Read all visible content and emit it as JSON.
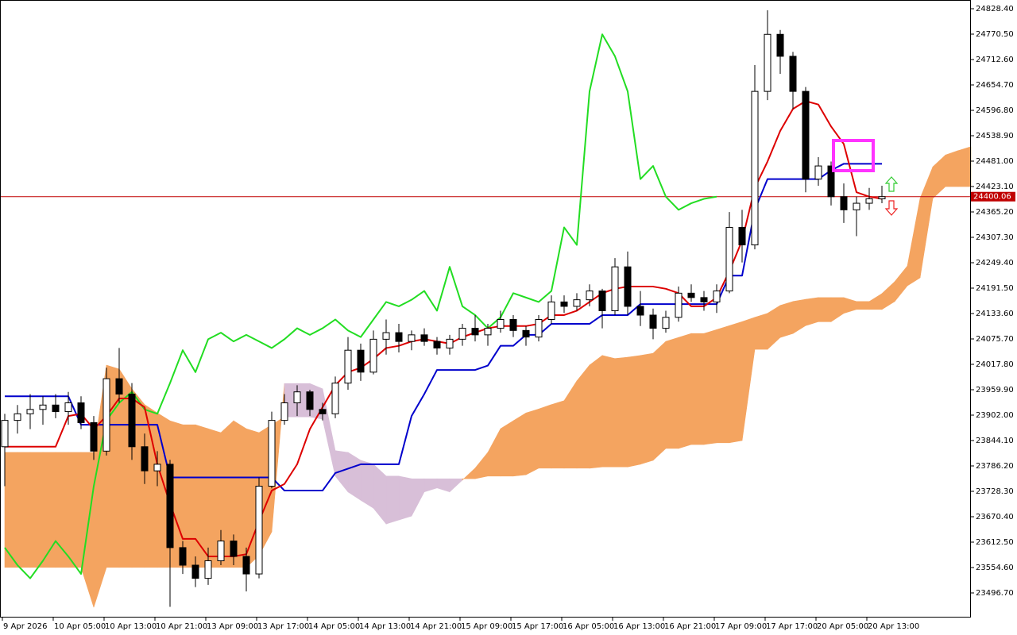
{
  "chart_data": {
    "type": "candlestick",
    "categories": [
      "9 Apr 2026",
      null,
      null,
      null,
      "10 Apr 05:00",
      null,
      null,
      null,
      "10 Apr 13:00",
      null,
      null,
      null,
      "10 Apr 21:00",
      null,
      null,
      null,
      "13 Apr 09:00",
      null,
      null,
      null,
      "13 Apr 17:00",
      null,
      null,
      null,
      "14 Apr 05:00",
      null,
      null,
      null,
      "14 Apr 13:00",
      null,
      null,
      null,
      "14 Apr 21:00",
      null,
      null,
      null,
      "15 Apr 09:00",
      null,
      null,
      null,
      "15 Apr 17:00",
      null,
      null,
      null,
      "16 Apr 05:00",
      null,
      null,
      null,
      "16 Apr 13:00",
      null,
      null,
      null,
      "16 Apr 21:00",
      null,
      null,
      null,
      "17 Apr 09:00",
      null,
      null,
      null,
      "17 Apr 17:00",
      null,
      null,
      null,
      "20 Apr 05:00",
      null,
      null,
      null,
      "20 Apr 13:00",
      null,
      null,
      null,
      null,
      null,
      null,
      null,
      null
    ],
    "open": [
      23830,
      23890,
      23905,
      23915,
      23925,
      23910,
      23930,
      23885,
      23820,
      23985,
      23950,
      23830,
      23775,
      23790,
      23600,
      23560,
      23530,
      23570,
      23615,
      23580,
      23540,
      23740,
      23890,
      23930,
      23955,
      23915,
      23905,
      23975,
      24050,
      24000,
      24075,
      24090,
      24070,
      24085,
      24070,
      24055,
      24075,
      24100,
      24085,
      24100,
      24120,
      24095,
      24080,
      24120,
      24160,
      24150,
      24165,
      24185,
      24140,
      24240,
      24150,
      24130,
      24100,
      24125,
      24180,
      24170,
      24160,
      24185,
      24330,
      24290,
      24640,
      24770,
      24720,
      24640,
      24440,
      24470,
      24400,
      24370,
      24385,
      24395,
      null,
      null,
      null,
      null,
      null,
      null,
      null
    ],
    "high": [
      23905,
      23925,
      23950,
      23945,
      23950,
      23955,
      23945,
      23900,
      24010,
      24055,
      23975,
      23860,
      23820,
      23800,
      23615,
      23580,
      23600,
      23640,
      23630,
      23600,
      23760,
      23910,
      23950,
      23970,
      23960,
      23930,
      23990,
      24080,
      24065,
      24095,
      24120,
      24110,
      24095,
      24100,
      24080,
      24085,
      24110,
      24130,
      24110,
      24140,
      24130,
      24105,
      24130,
      24175,
      24175,
      24180,
      24200,
      24190,
      24260,
      24275,
      24185,
      24145,
      24140,
      24195,
      24200,
      24185,
      24200,
      24365,
      24370,
      24700,
      24825,
      24780,
      24730,
      24650,
      24490,
      24480,
      24430,
      24400,
      24420,
      24425,
      null,
      null,
      null,
      null,
      null,
      null,
      null
    ],
    "low": [
      23740,
      23860,
      23870,
      23880,
      23895,
      23880,
      23870,
      23800,
      23810,
      23930,
      23800,
      23745,
      23740,
      23465,
      23540,
      23510,
      23515,
      23560,
      23560,
      23500,
      23530,
      23735,
      23880,
      23900,
      23900,
      23890,
      23895,
      23960,
      23980,
      23995,
      24040,
      24045,
      24050,
      24060,
      24040,
      24040,
      24060,
      24070,
      24060,
      24090,
      24080,
      24060,
      24070,
      24110,
      24135,
      24140,
      24150,
      24100,
      24130,
      24130,
      24105,
      24075,
      24090,
      24115,
      24160,
      24140,
      24135,
      24180,
      24250,
      24280,
      24620,
      24680,
      24600,
      24410,
      24425,
      24380,
      24340,
      24310,
      24370,
      24385,
      null,
      null,
      null,
      null,
      null,
      null,
      null
    ],
    "close": [
      23890,
      23905,
      23915,
      23925,
      23910,
      23930,
      23885,
      23820,
      23985,
      23950,
      23830,
      23775,
      23790,
      23600,
      23560,
      23530,
      23570,
      23615,
      23580,
      23540,
      23740,
      23890,
      23930,
      23955,
      23915,
      23905,
      23975,
      24050,
      24000,
      24075,
      24090,
      24070,
      24085,
      24070,
      24055,
      24075,
      24100,
      24085,
      24100,
      24120,
      24095,
      24080,
      24120,
      24160,
      24150,
      24165,
      24185,
      24140,
      24240,
      24150,
      24130,
      24100,
      24125,
      24180,
      24170,
      24160,
      24185,
      24330,
      24290,
      24640,
      24770,
      24720,
      24640,
      24440,
      24470,
      24400,
      24370,
      24385,
      24395,
      24400.06,
      null,
      null,
      null,
      null,
      null,
      null,
      null
    ],
    "bull_color": "#ffffff",
    "bear_color": "#000000",
    "candle_outline": "#000000",
    "cloud": {
      "span_a": [
        23817,
        23817,
        23817,
        23817,
        23817,
        23817,
        23817,
        23817,
        24016,
        24007,
        23962,
        23926,
        23907,
        23889,
        23880,
        23880,
        23871,
        23862,
        23889,
        23871,
        23862,
        23880,
        23898,
        23898,
        23898,
        23893,
        23763,
        23727,
        23708,
        23690,
        23654,
        23663,
        23672,
        23727,
        23736,
        23727,
        23754,
        23781,
        23817,
        23871,
        23889,
        23907,
        23916,
        23926,
        23935,
        23980,
        24016,
        24038,
        24031,
        24034,
        24038,
        24043,
        24070,
        24079,
        24088,
        24088,
        24097,
        24106,
        24115,
        24125,
        24134,
        24152,
        24161,
        24166,
        24170,
        24170,
        24170,
        24161,
        24161,
        24179,
        24206,
        24242,
        24396,
        24468,
        24495,
        24505,
        24514
      ],
      "span_b": [
        23555,
        23555,
        23555,
        23555,
        23555,
        23555,
        23555,
        23464,
        23555,
        23555,
        23555,
        23555,
        23555,
        23555,
        23555,
        23555,
        23555,
        23555,
        23555,
        23555,
        23582,
        23636,
        23974,
        23974,
        23974,
        23962,
        23821,
        23817,
        23799,
        23790,
        23763,
        23763,
        23757,
        23757,
        23757,
        23757,
        23757,
        23757,
        23763,
        23763,
        23763,
        23766,
        23781,
        23781,
        23781,
        23781,
        23781,
        23784,
        23784,
        23784,
        23790,
        23799,
        23826,
        23826,
        23835,
        23835,
        23839,
        23839,
        23844,
        24052,
        24052,
        24079,
        24088,
        24106,
        24115,
        24115,
        24134,
        24143,
        24143,
        24143,
        24161,
        24197,
        24215,
        24396,
        24423,
        24423,
        24423
      ],
      "bull_color": "#f4a460",
      "bear_color": "#d8bfd8"
    },
    "lines": [
      {
        "color": "#22dd22",
        "values": [
          23600,
          23560,
          23530,
          23570,
          23615,
          23580,
          23540,
          23740,
          23890,
          23930,
          23955,
          23915,
          23905,
          23975,
          24050,
          24000,
          24075,
          24090,
          24070,
          24085,
          24070,
          24055,
          24075,
          24100,
          24085,
          24100,
          24120,
          24095,
          24080,
          24120,
          24160,
          24150,
          24165,
          24185,
          24140,
          24240,
          24150,
          24130,
          24100,
          24125,
          24180,
          24170,
          24160,
          24185,
          24330,
          24290,
          24640,
          24770,
          24720,
          24640,
          24440,
          24470,
          24400,
          24370,
          24385,
          24395,
          24400.06,
          null,
          null,
          null,
          null,
          null,
          null,
          null,
          null,
          null,
          null,
          null,
          null,
          null,
          null,
          null,
          null,
          null,
          null,
          null,
          null
        ]
      },
      {
        "color": "#0000cc",
        "values": [
          23945,
          23945,
          23945,
          23945,
          23945,
          23945,
          23880,
          23880,
          23880,
          23880,
          23880,
          23880,
          23880,
          23760,
          23760,
          23760,
          23760,
          23760,
          23760,
          23760,
          23760,
          23760,
          23730,
          23730,
          23730,
          23730,
          23770,
          23780,
          23790,
          23790,
          23790,
          23790,
          23900,
          23950,
          24005,
          24005,
          24005,
          24005,
          24015,
          24060,
          24060,
          24085,
          24085,
          24110,
          24110,
          24110,
          24110,
          24130,
          24130,
          24130,
          24155,
          24155,
          24155,
          24155,
          24155,
          24155,
          24155,
          24220,
          24220,
          24370,
          24440,
          24440,
          24440,
          24440,
          24440,
          24460,
          24475,
          24475,
          24475,
          24475,
          null,
          null,
          null,
          null,
          null,
          null,
          null
        ]
      },
      {
        "color": "#dd0000",
        "values": [
          23830,
          23830,
          23830,
          23830,
          23830,
          23900,
          23905,
          23870,
          23900,
          23940,
          23940,
          23920,
          23790,
          23700,
          23620,
          23620,
          23580,
          23580,
          23580,
          23585,
          23660,
          23730,
          23745,
          23790,
          23870,
          23920,
          23970,
          24000,
          24010,
          24030,
          24055,
          24060,
          24070,
          24075,
          24070,
          24065,
          24080,
          24090,
          24100,
          24105,
          24105,
          24105,
          24110,
          24130,
          24130,
          24140,
          24160,
          24180,
          24190,
          24195,
          24195,
          24195,
          24190,
          24180,
          24150,
          24150,
          24170,
          24230,
          24300,
          24420,
          24480,
          24550,
          24600,
          24618,
          24610,
          24560,
          24520,
          24410,
          24400,
          24395,
          null,
          null,
          null,
          null,
          null,
          null,
          null
        ]
      }
    ],
    "price_line": {
      "value": 24400.06,
      "color": "#c00000"
    },
    "ylim": [
      23440.6,
      24848.3
    ],
    "yticks": [
      {
        "value": 24828.4,
        "label": "24828.40"
      },
      {
        "value": 24770.5,
        "label": "24770.50"
      },
      {
        "value": 24712.6,
        "label": "24712.60"
      },
      {
        "value": 24654.7,
        "label": "24654.70"
      },
      {
        "value": 24596.8,
        "label": "24596.80"
      },
      {
        "value": 24538.9,
        "label": "24538.90"
      },
      {
        "value": 24481,
        "label": "24481.00"
      },
      {
        "value": 24423.1,
        "label": "24423.10"
      },
      {
        "value": 24365.2,
        "label": "24365.20"
      },
      {
        "value": 24307.3,
        "label": "24307.30"
      },
      {
        "value": 24249.4,
        "label": "24249.40"
      },
      {
        "value": 24191.5,
        "label": "24191.50"
      },
      {
        "value": 24133.6,
        "label": "24133.60"
      },
      {
        "value": 24075.7,
        "label": "24075.70"
      },
      {
        "value": 24017.8,
        "label": "24017.80"
      },
      {
        "value": 23959.9,
        "label": "23959.90"
      },
      {
        "value": 23902,
        "label": "23902.00"
      },
      {
        "value": 23844.1,
        "label": "23844.10"
      },
      {
        "value": 23786.2,
        "label": "23786.20"
      },
      {
        "value": 23728.3,
        "label": "23728.30"
      },
      {
        "value": 23670.4,
        "label": "23670.40"
      },
      {
        "value": 23612.5,
        "label": "23612.50"
      },
      {
        "value": 23554.6,
        "label": "23554.60"
      },
      {
        "value": 23496.7,
        "label": "23496.70"
      }
    ],
    "grid": false
  }
}
